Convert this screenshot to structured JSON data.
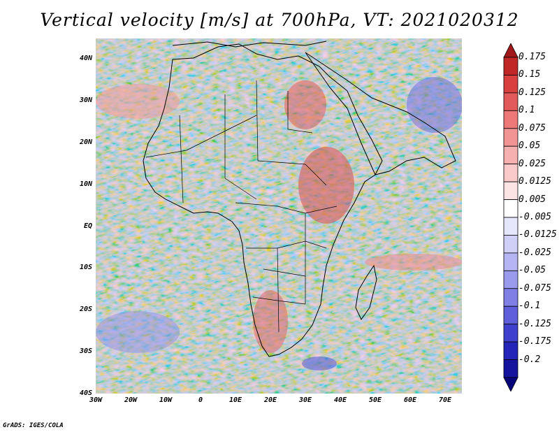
{
  "title": "Vertical velocity [m/s] at 700hPa, VT: 2021020312",
  "credit": "GrADS: IGES/COLA",
  "map": {
    "variable": "Vertical velocity",
    "units": "m/s",
    "level": "700hPa",
    "valid_time": "2021020312",
    "lat_labels": [
      "40N",
      "30N",
      "20N",
      "10N",
      "EQ",
      "10S",
      "20S",
      "30S",
      "40S"
    ],
    "lon_labels": [
      "30W",
      "20W",
      "10W",
      "0",
      "10E",
      "20E",
      "30E",
      "40E",
      "50E",
      "60E",
      "70E"
    ],
    "lat_range": [
      -40,
      45
    ],
    "lon_range": [
      -30,
      75
    ]
  },
  "colorbar": {
    "labels": [
      "0.175",
      "0.15",
      "0.125",
      "0.1",
      "0.075",
      "0.05",
      "0.025",
      "0.0125",
      "0.005",
      "-0.005",
      "-0.0125",
      "-0.025",
      "-0.05",
      "-0.075",
      "-0.1",
      "-0.125",
      "-0.175",
      "-0.2"
    ],
    "colors": [
      "#a01818",
      "#c02828",
      "#d84040",
      "#e35a5a",
      "#ec7878",
      "#f29494",
      "#f6b0b0",
      "#facaca",
      "#fde4e4",
      "#ffffff",
      "#e6e6fc",
      "#cfcff8",
      "#b5b5f3",
      "#9b9bee",
      "#7f7fe6",
      "#5f5fdc",
      "#4040cf",
      "#2424b8",
      "#14149e",
      "#06067a"
    ]
  }
}
